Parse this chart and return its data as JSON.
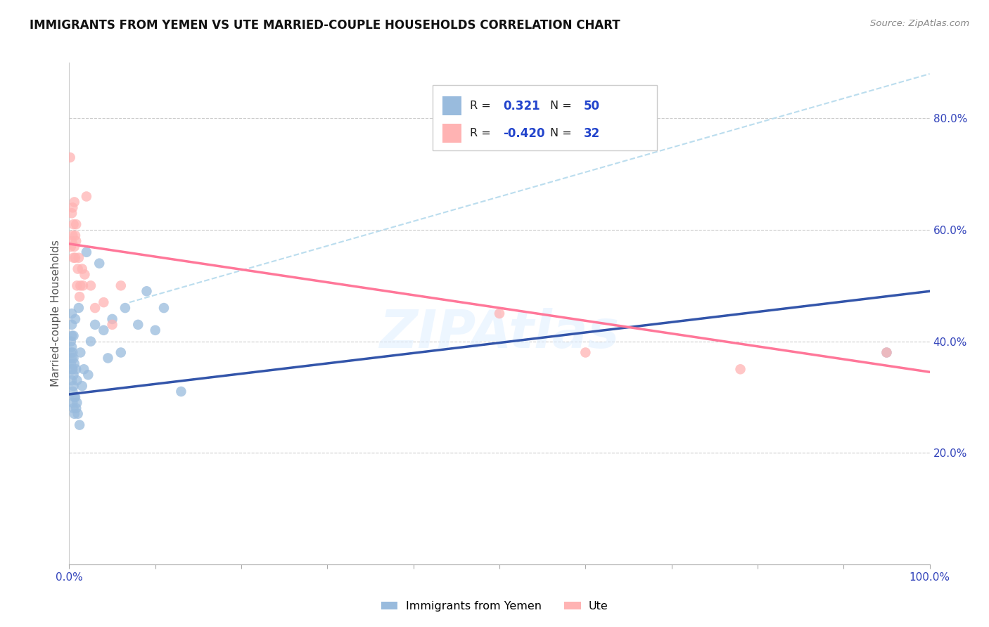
{
  "title": "IMMIGRANTS FROM YEMEN VS UTE MARRIED-COUPLE HOUSEHOLDS CORRELATION CHART",
  "source": "Source: ZipAtlas.com",
  "ylabel": "Married-couple Households",
  "blue_color": "#99BBDD",
  "pink_color": "#FFB3B3",
  "blue_line_color": "#3355AA",
  "pink_line_color": "#FF7799",
  "dashed_line_color": "#BBDDEE",
  "watermark": "ZIPAtlas",
  "blue_scatter_x": [
    0.002,
    0.002,
    0.002,
    0.003,
    0.003,
    0.003,
    0.003,
    0.003,
    0.003,
    0.003,
    0.004,
    0.004,
    0.004,
    0.004,
    0.005,
    0.005,
    0.005,
    0.005,
    0.005,
    0.006,
    0.006,
    0.006,
    0.007,
    0.007,
    0.008,
    0.008,
    0.009,
    0.009,
    0.01,
    0.011,
    0.012,
    0.013,
    0.015,
    0.017,
    0.02,
    0.022,
    0.025,
    0.03,
    0.035,
    0.04,
    0.045,
    0.05,
    0.06,
    0.065,
    0.08,
    0.09,
    0.1,
    0.11,
    0.13,
    0.95
  ],
  "blue_scatter_y": [
    0.36,
    0.38,
    0.4,
    0.33,
    0.35,
    0.37,
    0.39,
    0.41,
    0.43,
    0.45,
    0.29,
    0.31,
    0.35,
    0.38,
    0.28,
    0.32,
    0.34,
    0.37,
    0.41,
    0.27,
    0.3,
    0.36,
    0.3,
    0.44,
    0.28,
    0.35,
    0.29,
    0.33,
    0.27,
    0.46,
    0.25,
    0.38,
    0.32,
    0.35,
    0.56,
    0.34,
    0.4,
    0.43,
    0.54,
    0.42,
    0.37,
    0.44,
    0.38,
    0.46,
    0.43,
    0.49,
    0.42,
    0.46,
    0.31,
    0.38
  ],
  "pink_scatter_x": [
    0.001,
    0.002,
    0.003,
    0.003,
    0.004,
    0.004,
    0.005,
    0.005,
    0.006,
    0.006,
    0.007,
    0.007,
    0.008,
    0.008,
    0.009,
    0.01,
    0.011,
    0.012,
    0.013,
    0.015,
    0.016,
    0.018,
    0.02,
    0.025,
    0.03,
    0.04,
    0.05,
    0.06,
    0.5,
    0.6,
    0.78,
    0.95
  ],
  "pink_scatter_y": [
    0.73,
    0.57,
    0.58,
    0.63,
    0.59,
    0.64,
    0.55,
    0.61,
    0.57,
    0.65,
    0.55,
    0.59,
    0.58,
    0.61,
    0.5,
    0.53,
    0.55,
    0.48,
    0.5,
    0.53,
    0.5,
    0.52,
    0.66,
    0.5,
    0.46,
    0.47,
    0.43,
    0.5,
    0.45,
    0.38,
    0.35,
    0.38
  ],
  "blue_line_x": [
    0.0,
    1.0
  ],
  "blue_line_y": [
    0.305,
    0.49
  ],
  "pink_line_x": [
    0.0,
    1.0
  ],
  "pink_line_y": [
    0.575,
    0.345
  ],
  "dashed_line_x": [
    0.07,
    1.0
  ],
  "dashed_line_y": [
    0.47,
    0.88
  ],
  "xlim": [
    0.0,
    1.0
  ],
  "ylim": [
    0.0,
    0.9
  ],
  "yticks_right": [
    0.2,
    0.4,
    0.6,
    0.8
  ],
  "ytick_labels_right": [
    "20.0%",
    "40.0%",
    "60.0%",
    "80.0%"
  ],
  "xtick_positions": [
    0.0,
    0.1,
    0.2,
    0.3,
    0.4,
    0.5,
    0.6,
    0.7,
    0.8,
    0.9,
    1.0
  ],
  "xtick_labels": [
    "0.0%",
    "",
    "",
    "",
    "",
    "",
    "",
    "",
    "",
    "",
    "100.0%"
  ]
}
